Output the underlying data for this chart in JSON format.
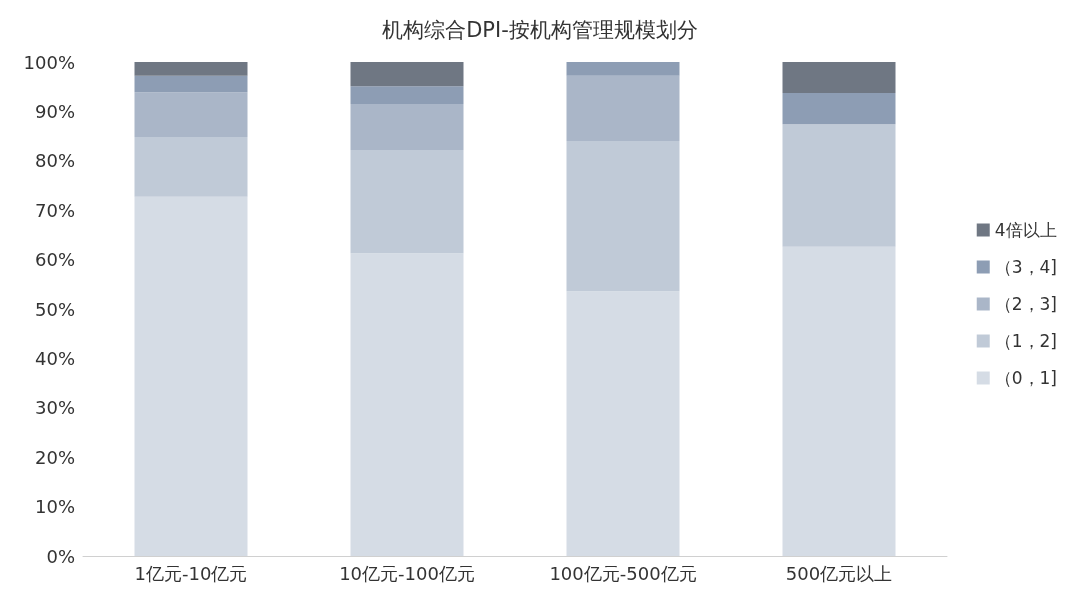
{
  "chart_data": {
    "type": "bar",
    "title": "机构综合DPI-按机构管理规模划分",
    "stacked": true,
    "categories": [
      "1亿元-10亿元",
      "10亿元-100亿元",
      "100亿元-500亿元",
      "500亿元以上"
    ],
    "series": [
      {
        "name": "（0，1]",
        "color": "#d5dce5",
        "values": [
          72.7,
          61.3,
          53.6,
          62.6
        ]
      },
      {
        "name": "（1，2]",
        "color": "#c0cad7",
        "values": [
          12.1,
          20.9,
          30.4,
          24.8
        ]
      },
      {
        "name": "（2，3]",
        "color": "#aab6c8",
        "values": [
          9.1,
          9.3,
          13.2,
          0
        ]
      },
      {
        "name": "（3，4]",
        "color": "#8d9db4",
        "values": [
          3.3,
          3.6,
          2.8,
          6.3
        ]
      },
      {
        "name": "4倍以上",
        "color": "#6f7783",
        "values": [
          2.8,
          4.9,
          0,
          6.3
        ]
      }
    ],
    "ylim": [
      0,
      100
    ],
    "yticks": [
      {
        "value": 0,
        "label": "0%"
      },
      {
        "value": 10,
        "label": "10%"
      },
      {
        "value": 20,
        "label": "20%"
      },
      {
        "value": 30,
        "label": "30%"
      },
      {
        "value": 40,
        "label": "40%"
      },
      {
        "value": 50,
        "label": "50%"
      },
      {
        "value": 60,
        "label": "60%"
      },
      {
        "value": 70,
        "label": "70%"
      },
      {
        "value": 80,
        "label": "80%"
      },
      {
        "value": 90,
        "label": "90%"
      },
      {
        "value": 100,
        "label": "100%"
      }
    ],
    "grid": false,
    "legend": "right"
  }
}
